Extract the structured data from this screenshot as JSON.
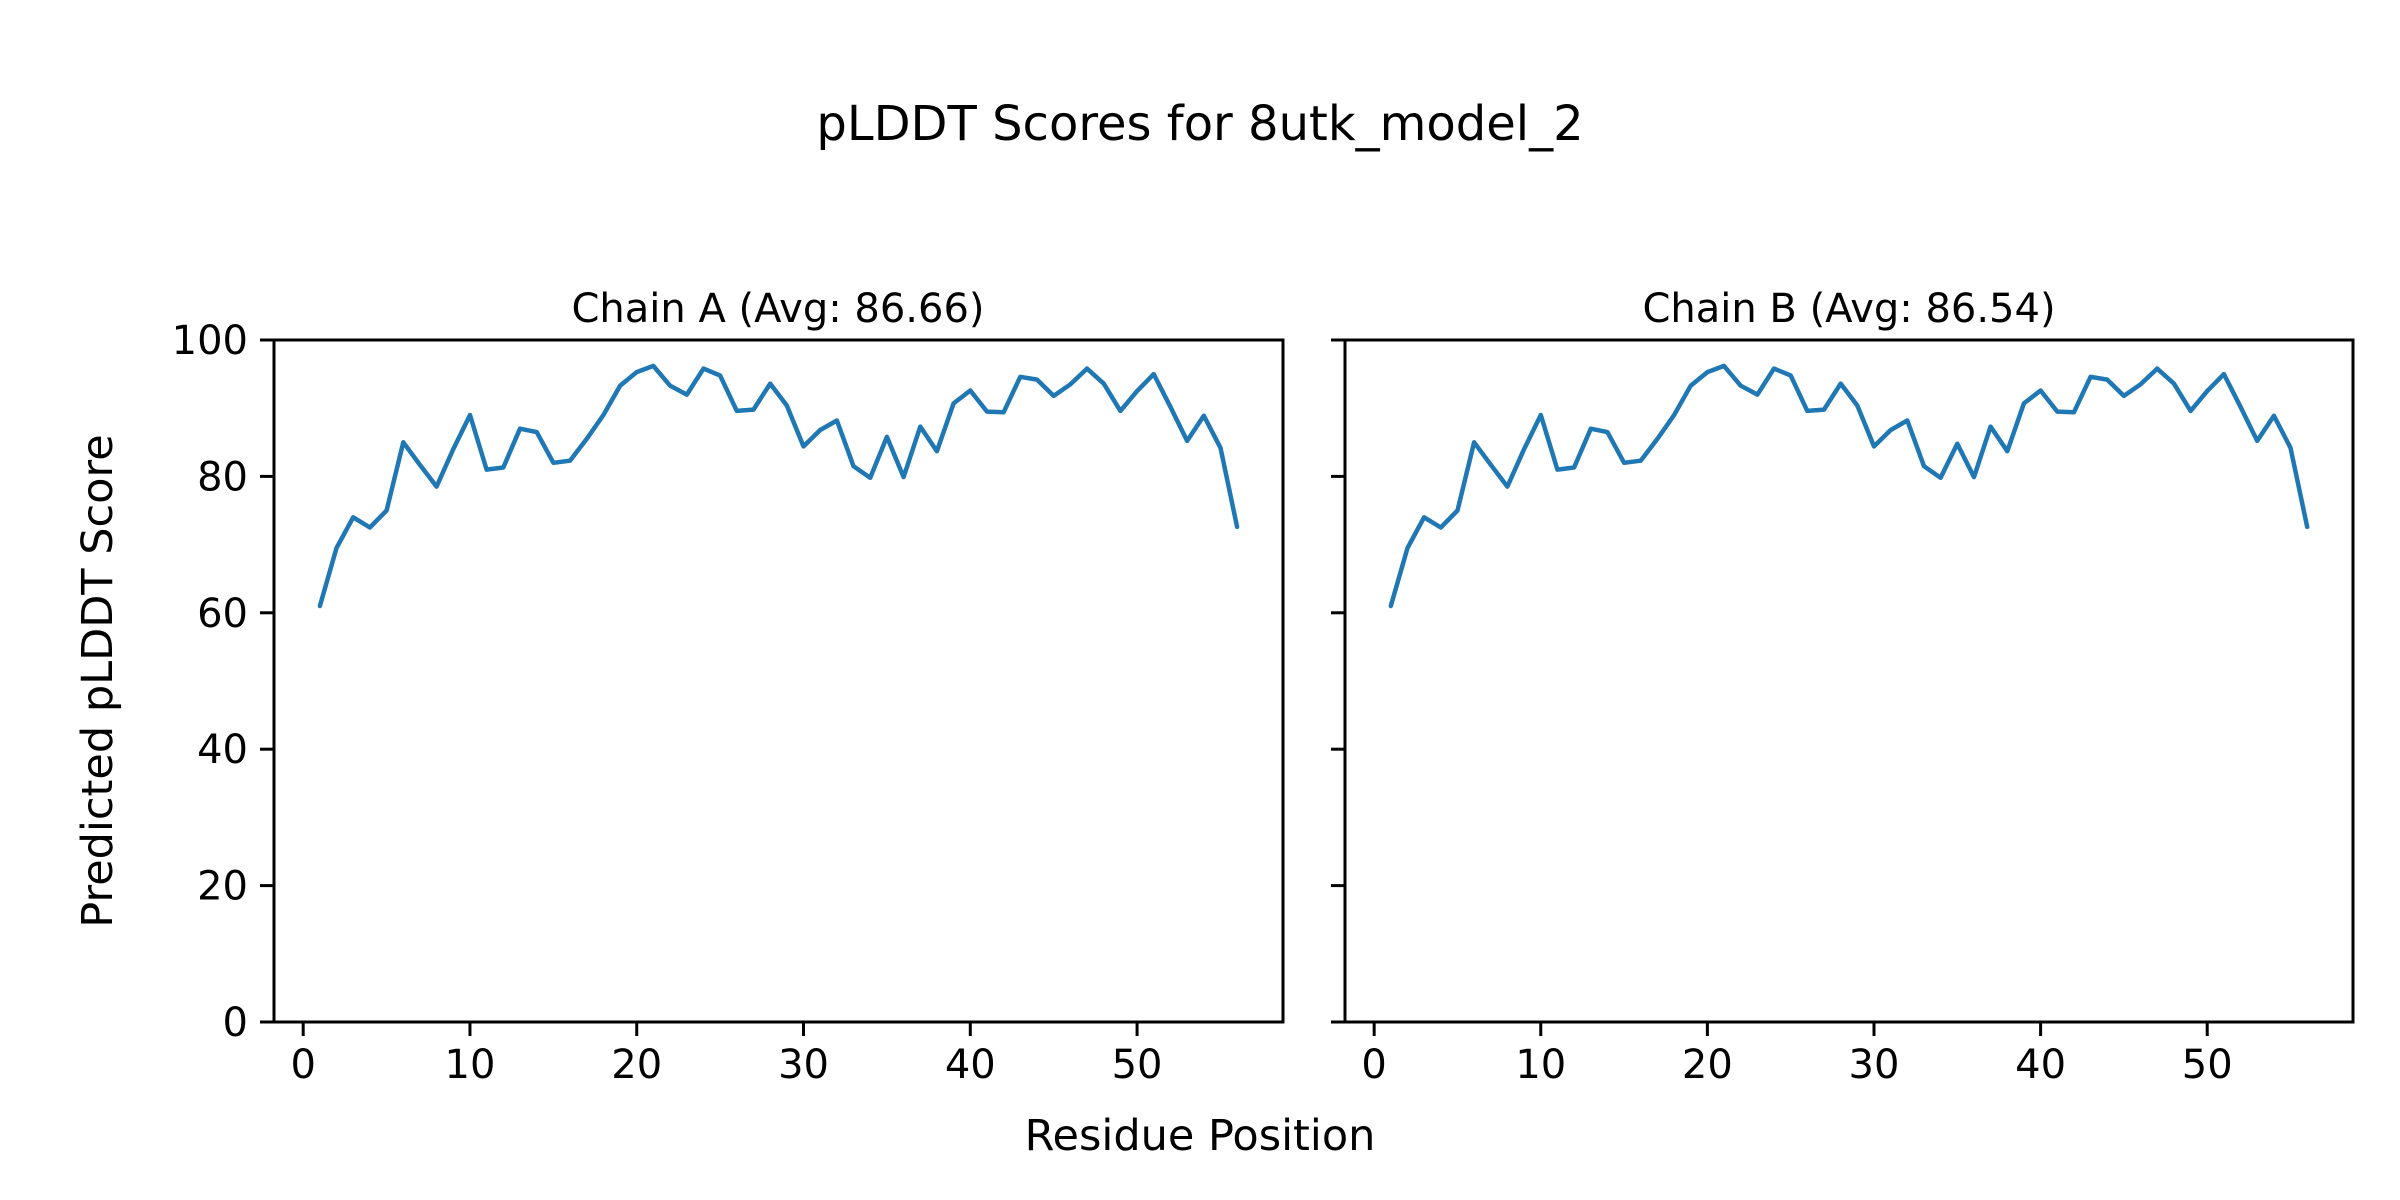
{
  "figure": {
    "title": "pLDDT Scores for 8utk_model_2",
    "xlabel": "Residue Position",
    "ylabel": "Predicted pLDDT Score",
    "background_color": "#ffffff",
    "axis_color": "#000000",
    "line_color": "#1f77b4"
  },
  "chart_data": [
    {
      "type": "line",
      "title": "Chain A (Avg: 86.66)",
      "chain": "A",
      "avg_plddt": 86.66,
      "xlabel": "Residue Position",
      "ylabel": "Predicted pLDDT Score",
      "xlim": [
        -1.75,
        58.75
      ],
      "ylim": [
        0,
        100
      ],
      "xticks": [
        0,
        10,
        20,
        30,
        40,
        50
      ],
      "yticks": [
        0,
        20,
        40,
        60,
        80,
        100
      ],
      "show_ytick_labels": true,
      "grid": false,
      "legend": "none",
      "x": [
        1,
        2,
        3,
        4,
        5,
        6,
        7,
        8,
        9,
        10,
        11,
        12,
        13,
        14,
        15,
        16,
        17,
        18,
        19,
        20,
        21,
        22,
        23,
        24,
        25,
        26,
        27,
        28,
        29,
        30,
        31,
        32,
        33,
        34,
        35,
        36,
        37,
        38,
        39,
        40,
        41,
        42,
        43,
        44,
        45,
        46,
        47,
        48,
        49,
        50,
        51,
        52,
        53,
        54,
        55,
        56
      ],
      "y": [
        61.0,
        69.5,
        74.0,
        72.5,
        75.0,
        85.0,
        81.7,
        78.5,
        84.0,
        89.0,
        81.0,
        81.3,
        87.0,
        86.5,
        82.0,
        82.3,
        85.5,
        89.0,
        93.3,
        95.3,
        96.2,
        93.3,
        92.0,
        95.8,
        94.8,
        89.6,
        89.8,
        93.6,
        90.4,
        84.4,
        86.8,
        88.2,
        81.5,
        79.8,
        85.8,
        79.9,
        87.3,
        83.7,
        90.7,
        92.6,
        89.5,
        89.4,
        94.6,
        94.2,
        91.8,
        93.5,
        95.8,
        93.6,
        89.6,
        92.5,
        95.0,
        90.2,
        85.2,
        88.9,
        84.2,
        72.6
      ]
    },
    {
      "type": "line",
      "title": "Chain B (Avg: 86.54)",
      "chain": "B",
      "avg_plddt": 86.54,
      "xlabel": "Residue Position",
      "ylabel": "Predicted pLDDT Score",
      "xlim": [
        -1.75,
        58.75
      ],
      "ylim": [
        0,
        100
      ],
      "xticks": [
        0,
        10,
        20,
        30,
        40,
        50
      ],
      "yticks": [
        0,
        20,
        40,
        60,
        80,
        100
      ],
      "show_ytick_labels": false,
      "grid": false,
      "legend": "none",
      "x": [
        1,
        2,
        3,
        4,
        5,
        6,
        7,
        8,
        9,
        10,
        11,
        12,
        13,
        14,
        15,
        16,
        17,
        18,
        19,
        20,
        21,
        22,
        23,
        24,
        25,
        26,
        27,
        28,
        29,
        30,
        31,
        32,
        33,
        34,
        35,
        36,
        37,
        38,
        39,
        40,
        41,
        42,
        43,
        44,
        45,
        46,
        47,
        48,
        49,
        50,
        51,
        52,
        53,
        54,
        55,
        56
      ],
      "y": [
        61.0,
        69.5,
        74.0,
        72.5,
        75.0,
        85.0,
        81.7,
        78.5,
        84.0,
        89.0,
        81.0,
        81.3,
        87.0,
        86.5,
        82.0,
        82.3,
        85.5,
        89.0,
        93.3,
        95.3,
        96.2,
        93.3,
        92.0,
        95.8,
        94.8,
        89.6,
        89.8,
        93.6,
        90.4,
        84.4,
        86.8,
        88.2,
        81.5,
        79.8,
        84.8,
        79.9,
        87.3,
        83.7,
        90.7,
        92.6,
        89.5,
        89.4,
        94.6,
        94.2,
        91.8,
        93.5,
        95.8,
        93.6,
        89.6,
        92.5,
        95.0,
        90.2,
        85.2,
        88.9,
        84.2,
        72.6
      ]
    }
  ],
  "layout_note": "two side-by-side line subplots sharing y axis"
}
